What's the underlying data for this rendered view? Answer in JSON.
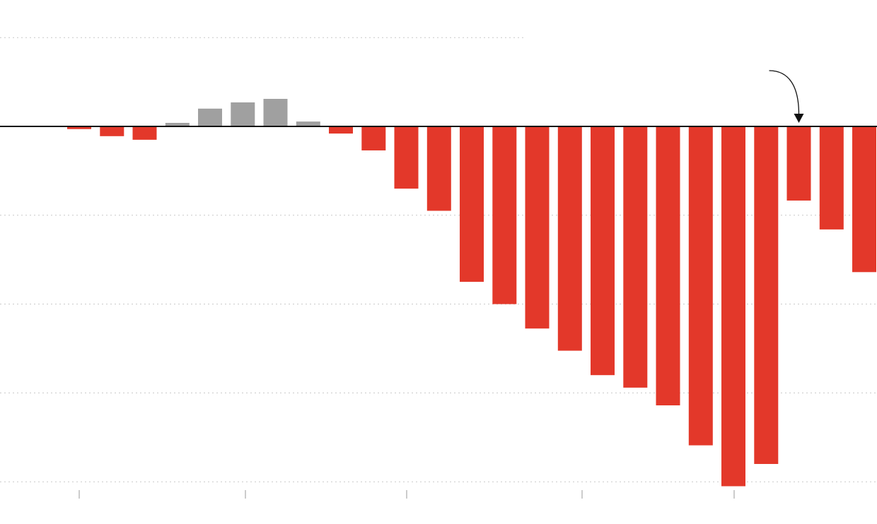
{
  "chart_data": {
    "type": "bar",
    "values": [
      -0.6,
      -2.2,
      -3.0,
      0.8,
      4.0,
      5.4,
      6.2,
      1.1,
      -1.6,
      -5.4,
      -14.0,
      -19.0,
      -35.0,
      -40.0,
      -45.5,
      -50.5,
      -56.0,
      -58.8,
      -62.8,
      -71.8,
      -81.0,
      -76.0,
      -16.7,
      -23.2,
      -32.8
    ],
    "bar_colors": [
      "#e3382a",
      "#e3382a",
      "#e3382a",
      "#a0a0a0",
      "#a0a0a0",
      "#a0a0a0",
      "#a0a0a0",
      "#a0a0a0",
      "#e3382a",
      "#e3382a",
      "#e3382a",
      "#e3382a",
      "#e3382a",
      "#e3382a",
      "#e3382a",
      "#e3382a",
      "#e3382a",
      "#e3382a",
      "#e3382a",
      "#e3382a",
      "#e3382a",
      "#e3382a",
      "#e3382a",
      "#e3382a",
      "#e3382a"
    ],
    "ylim": [
      -80,
      20
    ],
    "grid": true,
    "gridlines": [
      20,
      -20,
      -40,
      -60,
      -80
    ],
    "colors": {
      "negative": "#e3382a",
      "positive": "#a0a0a0",
      "zero_line": "#111111",
      "grid": "#c8c8c8"
    },
    "annotation": {
      "type": "arrow",
      "target_bar_index": 22
    }
  }
}
